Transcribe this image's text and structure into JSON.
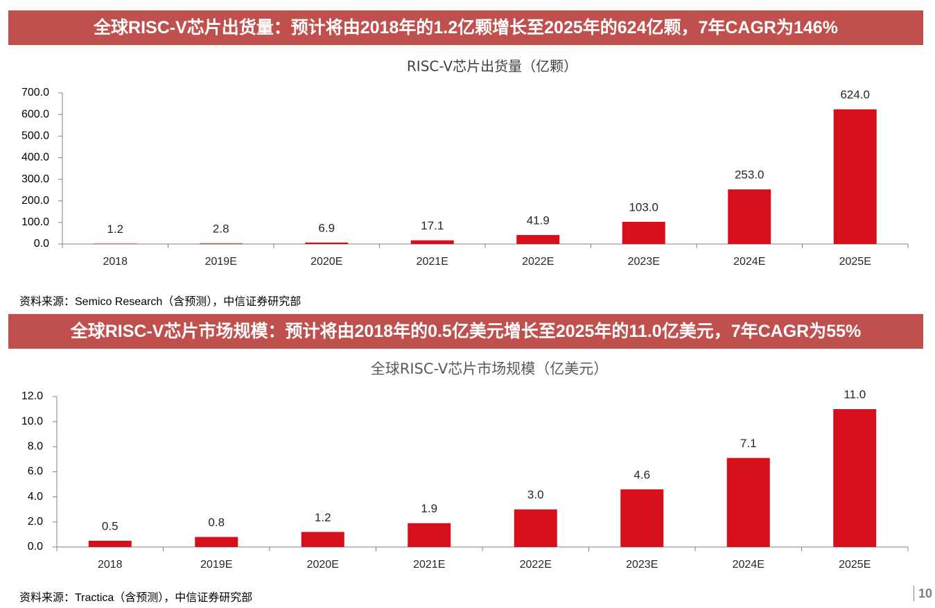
{
  "sections": [
    {
      "banner": "全球RISC-V芯片出货量：预计将由2018年的1.2亿颗增长至2025年的624亿颗，7年CAGR为146%",
      "source": "资料来源：Semico Research（含预测），中信证券研究部"
    },
    {
      "banner": "全球RISC-V芯片市场规模：预计将由2018年的0.5亿美元增长至2025年的11.0亿美元，7年CAGR为55%",
      "source": "资料来源：Tractica（含预测），中信证券研究部"
    }
  ],
  "page_number": "10",
  "colors": {
    "banner": "#c0504d",
    "bar": "#d50f1c"
  },
  "chart_data": [
    {
      "type": "bar",
      "title": "RISC-V芯片出货量（亿颗）",
      "categories": [
        "2018",
        "2019E",
        "2020E",
        "2021E",
        "2022E",
        "2023E",
        "2024E",
        "2025E"
      ],
      "values": [
        1.2,
        2.8,
        6.9,
        17.1,
        41.9,
        103.0,
        253.0,
        624.0
      ],
      "labels": [
        "1.2",
        "2.8",
        "6.9",
        "17.1",
        "41.9",
        "103.0",
        "253.0",
        "624.0"
      ],
      "yticks": [
        "0.0",
        "100.0",
        "200.0",
        "300.0",
        "400.0",
        "500.0",
        "600.0",
        "700.0"
      ],
      "ylim": [
        0,
        700
      ],
      "xlabel": "",
      "ylabel": "",
      "grid": false,
      "legend": false
    },
    {
      "type": "bar",
      "title": "全球RISC-V芯片市场规模（亿美元）",
      "categories": [
        "2018",
        "2019E",
        "2020E",
        "2021E",
        "2022E",
        "2023E",
        "2024E",
        "2025E"
      ],
      "values": [
        0.5,
        0.8,
        1.2,
        1.9,
        3.0,
        4.6,
        7.1,
        11.0
      ],
      "labels": [
        "0.5",
        "0.8",
        "1.2",
        "1.9",
        "3.0",
        "4.6",
        "7.1",
        "11.0"
      ],
      "yticks": [
        "0.0",
        "2.0",
        "4.0",
        "6.0",
        "8.0",
        "10.0",
        "12.0"
      ],
      "ylim": [
        0,
        12
      ],
      "xlabel": "",
      "ylabel": "",
      "grid": false,
      "legend": false
    }
  ]
}
